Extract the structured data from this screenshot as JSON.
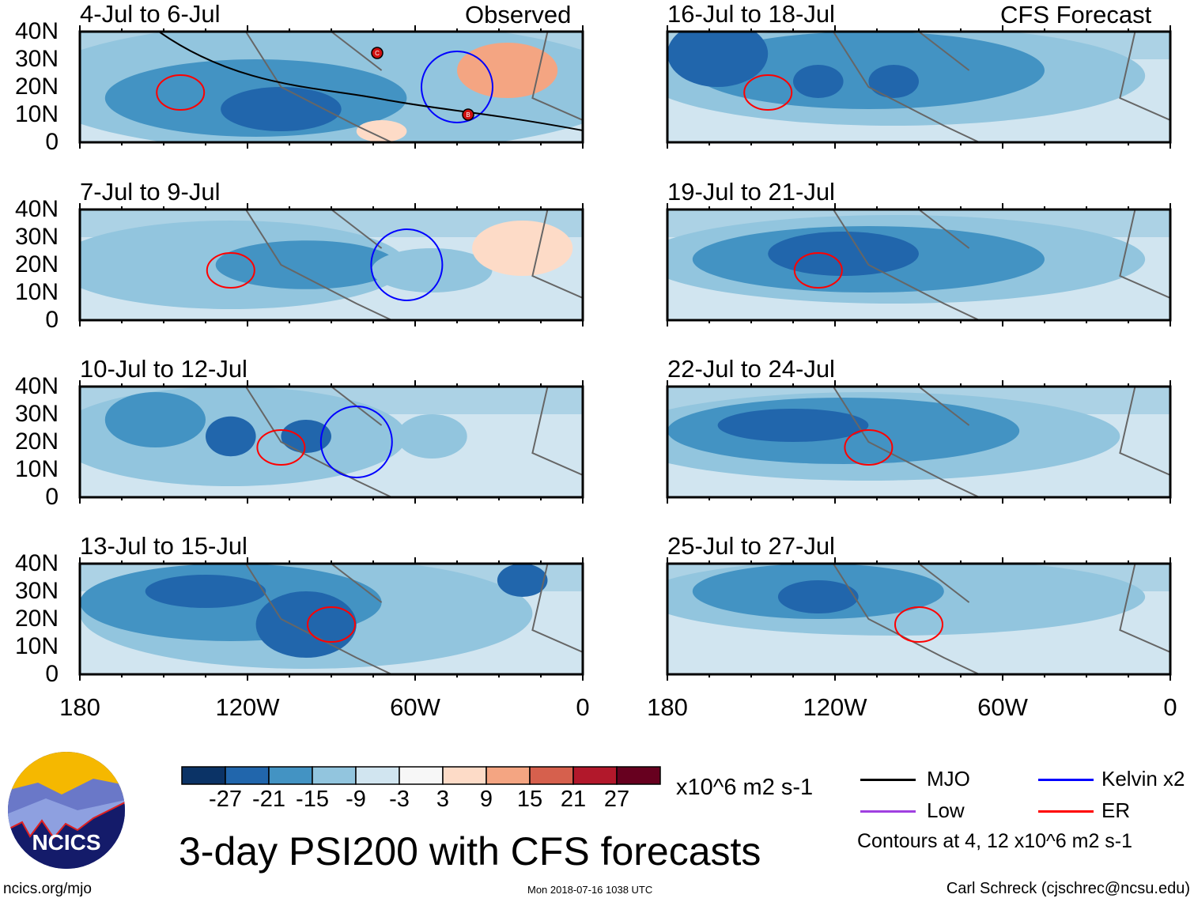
{
  "figure": {
    "title": "3-day PSI200 with CFS forecasts",
    "units": "x10^6 m2 s-1",
    "url": "ncics.org/mjo",
    "timestamp": "Mon 2018-07-16 1038 UTC",
    "author": "Carl Schreck (cjschrec@ncsu.edu)",
    "logo_text": "NCICS"
  },
  "columns": [
    {
      "label": "Observed"
    },
    {
      "label": "CFS Forecast"
    }
  ],
  "panels": [
    {
      "title": "4-Jul to 6-Jul",
      "column": 0,
      "row": 0
    },
    {
      "title": "7-Jul to 9-Jul",
      "column": 0,
      "row": 1
    },
    {
      "title": "10-Jul to 12-Jul",
      "column": 0,
      "row": 2
    },
    {
      "title": "13-Jul to 15-Jul",
      "column": 0,
      "row": 3
    },
    {
      "title": "16-Jul to 18-Jul",
      "column": 1,
      "row": 0
    },
    {
      "title": "19-Jul to 21-Jul",
      "column": 1,
      "row": 1
    },
    {
      "title": "22-Jul to 24-Jul",
      "column": 1,
      "row": 2
    },
    {
      "title": "25-Jul to 27-Jul",
      "column": 1,
      "row": 3
    }
  ],
  "y_ticks": [
    "40N",
    "30N",
    "20N",
    "10N",
    "0"
  ],
  "x_ticks": [
    "180",
    "120W",
    "60W",
    "0"
  ],
  "colorbar": {
    "labels": [
      "-27",
      "-21",
      "-15",
      "-9",
      "-3",
      "3",
      "9",
      "15",
      "21",
      "27"
    ],
    "colors": [
      "#0b3366",
      "#2166ac",
      "#4393c3",
      "#92c5de",
      "#d1e5f0",
      "#f7f7f7",
      "#fddbc7",
      "#f4a582",
      "#d6604d",
      "#b2182b",
      "#67001f"
    ]
  },
  "legend": {
    "items": [
      {
        "label": "MJO",
        "color": "#000000"
      },
      {
        "label": "Kelvin x2",
        "color": "#0000ff"
      },
      {
        "label": "Low",
        "color": "#a040e0"
      },
      {
        "label": "ER",
        "color": "#ff0000"
      }
    ],
    "note": "Contours at 4, 12 x10^6 m2 s-1"
  },
  "storm_markers": [
    "C",
    "B"
  ]
}
